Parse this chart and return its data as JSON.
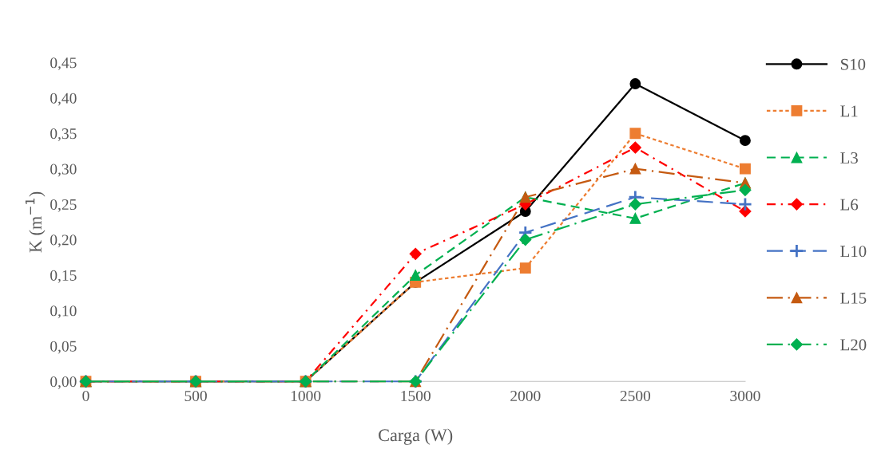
{
  "chart_data": {
    "type": "line",
    "xlabel": "Carga (W)",
    "ylabel": "K (m$^{−1}$)",
    "x": [
      0,
      500,
      1000,
      1500,
      2000,
      2500,
      3000
    ],
    "xlim": [
      0,
      3000
    ],
    "xticks": [
      0,
      500,
      1000,
      1500,
      2000,
      2500,
      3000
    ],
    "ylim": [
      0,
      0.45
    ],
    "yticks": [
      {
        "value": 0,
        "label": "0,00"
      },
      {
        "value": 0.05,
        "label": "0,05"
      },
      {
        "value": 0.1,
        "label": "0,10"
      },
      {
        "value": 0.15,
        "label": "0,15"
      },
      {
        "value": 0.2,
        "label": "0,20"
      },
      {
        "value": 0.25,
        "label": "0,25"
      },
      {
        "value": 0.3,
        "label": "0,30"
      },
      {
        "value": 0.35,
        "label": "0,35"
      },
      {
        "value": 0.4,
        "label": "0,40"
      },
      {
        "value": 0.45,
        "label": "0,45"
      }
    ],
    "grid": false,
    "legend": "right",
    "series": [
      {
        "name": "S10",
        "color": "#000000",
        "marker": "circle",
        "line_style": "solid",
        "values": [
          0,
          0,
          0,
          0.14,
          0.24,
          0.42,
          0.34
        ]
      },
      {
        "name": "L1",
        "color": "#ed7d31",
        "marker": "square",
        "line_style": "dotted",
        "values": [
          0,
          0,
          0,
          0.14,
          0.16,
          0.35,
          0.3
        ]
      },
      {
        "name": "L3",
        "color": "#00b050",
        "marker": "triangle",
        "line_style": "dashed",
        "values": [
          0,
          0,
          0,
          0.15,
          0.26,
          0.23,
          0.28
        ]
      },
      {
        "name": "L6",
        "color": "#ff0000",
        "marker": "diamond",
        "line_style": "dashdot",
        "values": [
          0,
          0,
          0,
          0.18,
          0.25,
          0.33,
          0.24
        ]
      },
      {
        "name": "L10",
        "color": "#4472c4",
        "marker": "cross",
        "line_style": "longdash",
        "values": [
          0,
          0,
          0,
          0,
          0.21,
          0.26,
          0.25
        ]
      },
      {
        "name": "L15",
        "color": "#c55a11",
        "marker": "triangle",
        "line_style": "longdashdot",
        "values": [
          0,
          0,
          0,
          0,
          0.26,
          0.3,
          0.28
        ]
      },
      {
        "name": "L20",
        "color": "#00b050",
        "marker": "diamond",
        "line_style": "longdashdot",
        "values": [
          0,
          0,
          0,
          0,
          0.2,
          0.25,
          0.27
        ]
      }
    ]
  }
}
